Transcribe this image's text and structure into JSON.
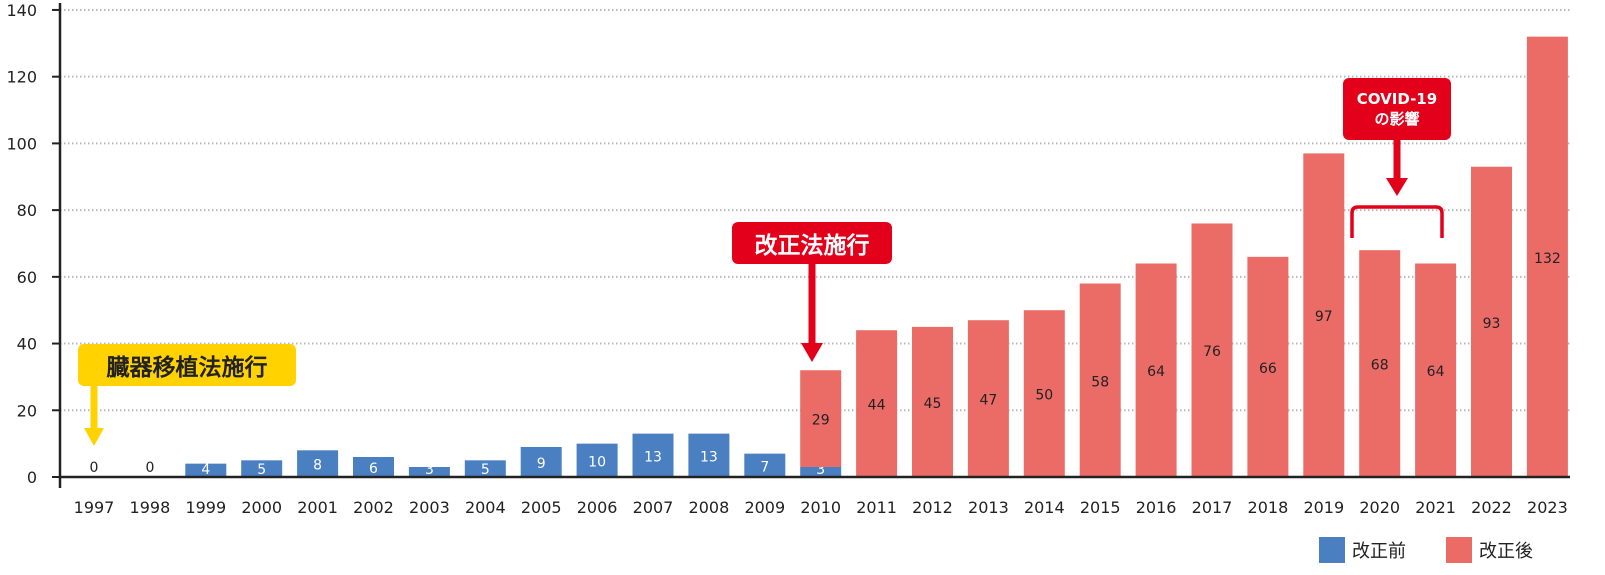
{
  "chart_data": {
    "type": "bar",
    "stacked": true,
    "categories": [
      "1997",
      "1998",
      "1999",
      "2000",
      "2001",
      "2002",
      "2003",
      "2004",
      "2005",
      "2006",
      "2007",
      "2008",
      "2009",
      "2010",
      "2011",
      "2012",
      "2013",
      "2014",
      "2015",
      "2016",
      "2017",
      "2018",
      "2019",
      "2020",
      "2021",
      "2022",
      "2023"
    ],
    "series": [
      {
        "name": "改正前",
        "color": "#4a7fc1",
        "values": [
          0,
          0,
          4,
          5,
          8,
          6,
          3,
          5,
          9,
          10,
          13,
          13,
          7,
          3,
          0,
          0,
          0,
          0,
          0,
          0,
          0,
          0,
          0,
          0,
          0,
          0,
          0
        ]
      },
      {
        "name": "改正後",
        "color": "#eb6c67",
        "values": [
          0,
          0,
          0,
          0,
          0,
          0,
          0,
          0,
          0,
          0,
          0,
          0,
          0,
          29,
          44,
          45,
          47,
          50,
          58,
          64,
          76,
          66,
          97,
          68,
          64,
          93,
          132
        ]
      }
    ],
    "ylim": [
      0,
      140
    ],
    "yticks": [
      0,
      20,
      40,
      60,
      80,
      100,
      120,
      140
    ],
    "grid": true,
    "legend_position": "bottom-right",
    "annotations": {
      "organ_law": "臓器移植法施行",
      "revised_law": "改正法施行",
      "covid_line1": "COVID-19",
      "covid_line2": "の影響"
    }
  },
  "colors": {
    "before": "#4a7fc1",
    "after": "#eb6c67",
    "callout_yellow": "#ffd200",
    "callout_red": "#e3001b"
  }
}
